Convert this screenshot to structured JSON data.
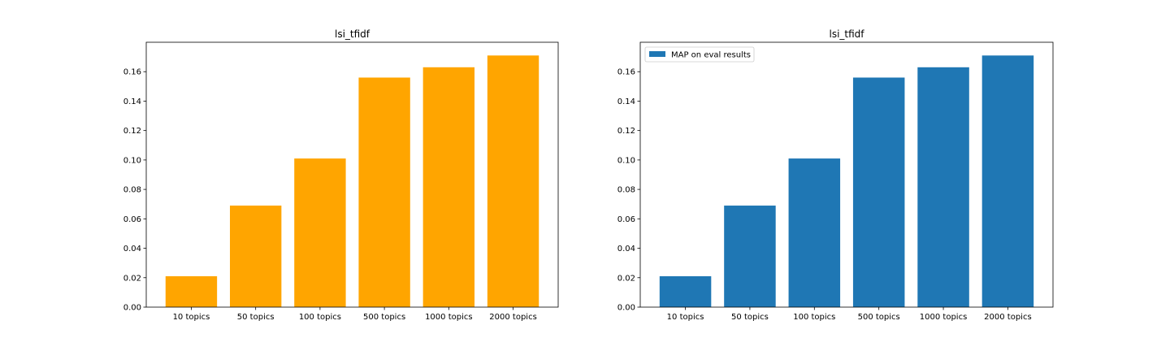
{
  "chart_data": [
    {
      "type": "bar",
      "title": "lsi_tfidf",
      "xlabel": "",
      "ylabel": "",
      "categories": [
        "10 topics",
        "50 topics",
        "100 topics",
        "500 topics",
        "1000 topics",
        "2000 topics"
      ],
      "values": [
        0.021,
        0.069,
        0.101,
        0.156,
        0.163,
        0.171
      ],
      "ylim": [
        0,
        0.18
      ],
      "yticks": [
        "0.00",
        "0.02",
        "0.04",
        "0.06",
        "0.08",
        "0.10",
        "0.12",
        "0.14",
        "0.16"
      ],
      "color": "#ffa500",
      "legend": null,
      "grid": false
    },
    {
      "type": "bar",
      "title": "lsi_tfidf",
      "xlabel": "",
      "ylabel": "",
      "categories": [
        "10 topics",
        "50 topics",
        "100 topics",
        "500 topics",
        "1000 topics",
        "2000 topics"
      ],
      "values": [
        0.021,
        0.069,
        0.101,
        0.156,
        0.163,
        0.171
      ],
      "ylim": [
        0,
        0.18
      ],
      "yticks": [
        "0.00",
        "0.02",
        "0.04",
        "0.06",
        "0.08",
        "0.10",
        "0.12",
        "0.14",
        "0.16"
      ],
      "color": "#1f77b4",
      "series": [
        {
          "name": "MAP on eval results",
          "values": [
            0.021,
            0.069,
            0.101,
            0.156,
            0.163,
            0.171
          ]
        }
      ],
      "legend": {
        "label": "MAP on eval results",
        "placement": "upper-left"
      },
      "grid": false
    }
  ]
}
